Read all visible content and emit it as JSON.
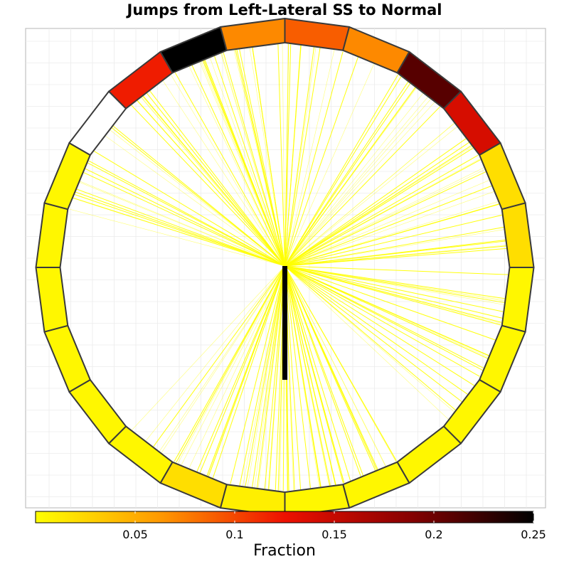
{
  "chart_data": {
    "type": "radial-segment-chart",
    "title": "Jumps from Left-Lateral SS to Normal",
    "segment_count": 24,
    "segments_clockwise_from_top": [
      0.09,
      0.07,
      0.21,
      0.14,
      0.02,
      0.02,
      0.005,
      0.005,
      0.005,
      0.005,
      0.005,
      0.005,
      0.01,
      0.02,
      0.005,
      0.005,
      0.005,
      0.005,
      0.005,
      0.005,
      0.0,
      0.12,
      0.25,
      0.07
    ],
    "missing_segments_shown_white": [
      20
    ],
    "colorbar": {
      "title": "Fraction",
      "colormap": [
        "#ffff00",
        "#ff9900",
        "#ee1100",
        "#880000",
        "#000000"
      ],
      "range": [
        0,
        0.25
      ],
      "tick_labels": [
        "0.05",
        "0.1",
        "0.15",
        "0.2",
        "0.25"
      ],
      "tick_values": [
        0.05,
        0.1,
        0.15,
        0.2,
        0.25
      ]
    },
    "line_color": "#ffff00",
    "center_marker_color": "#000000",
    "grid": true
  }
}
